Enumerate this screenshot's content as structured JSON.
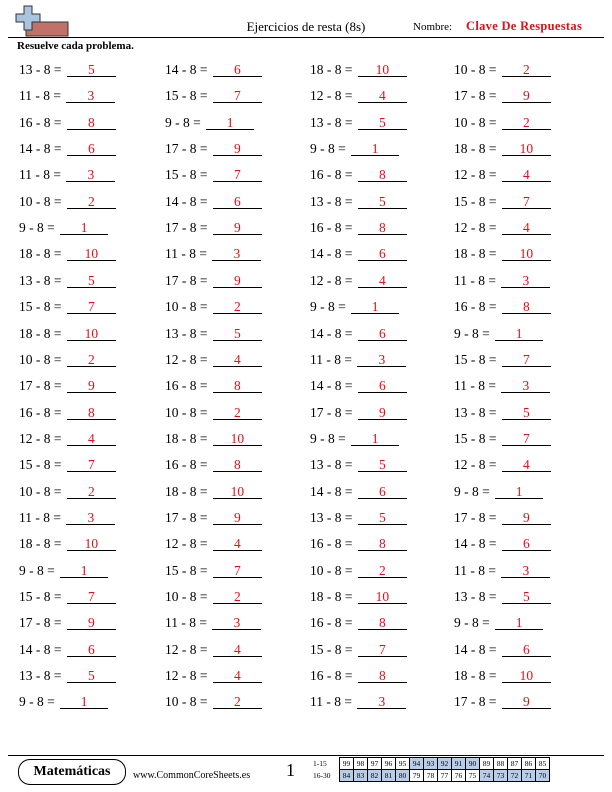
{
  "header": {
    "title": "Ejercicios de resta (8s)",
    "name_label": "Nombre:",
    "name_value": "Clave De Respuestas",
    "logo_icon": "math-plus-minus-logo-icon"
  },
  "instructions": "Resuelve cada problema.",
  "answer_color": "#e0101b",
  "columns": [
    [
      {
        "q": "13 - 8 =",
        "a": "5"
      },
      {
        "q": "11 - 8 =",
        "a": "3"
      },
      {
        "q": "16 - 8 =",
        "a": "8"
      },
      {
        "q": "14 - 8 =",
        "a": "6"
      },
      {
        "q": "11 - 8 =",
        "a": "3"
      },
      {
        "q": "10 - 8 =",
        "a": "2"
      },
      {
        "q": "9 - 8 =",
        "a": "1"
      },
      {
        "q": "18 - 8 =",
        "a": "10"
      },
      {
        "q": "13 - 8 =",
        "a": "5"
      },
      {
        "q": "15 - 8 =",
        "a": "7"
      },
      {
        "q": "18 - 8 =",
        "a": "10"
      },
      {
        "q": "10 - 8 =",
        "a": "2"
      },
      {
        "q": "17 - 8 =",
        "a": "9"
      },
      {
        "q": "16 - 8 =",
        "a": "8"
      },
      {
        "q": "12 - 8 =",
        "a": "4"
      },
      {
        "q": "15 - 8 =",
        "a": "7"
      },
      {
        "q": "10 - 8 =",
        "a": "2"
      },
      {
        "q": "11 - 8 =",
        "a": "3"
      },
      {
        "q": "18 - 8 =",
        "a": "10"
      },
      {
        "q": "9 - 8 =",
        "a": "1"
      },
      {
        "q": "15 - 8 =",
        "a": "7"
      },
      {
        "q": "17 - 8 =",
        "a": "9"
      },
      {
        "q": "14 - 8 =",
        "a": "6"
      },
      {
        "q": "13 - 8 =",
        "a": "5"
      },
      {
        "q": "9 - 8 =",
        "a": "1"
      }
    ],
    [
      {
        "q": "14 - 8 =",
        "a": "6"
      },
      {
        "q": "15 - 8 =",
        "a": "7"
      },
      {
        "q": "9 - 8 =",
        "a": "1"
      },
      {
        "q": "17 - 8 =",
        "a": "9"
      },
      {
        "q": "15 - 8 =",
        "a": "7"
      },
      {
        "q": "14 - 8 =",
        "a": "6"
      },
      {
        "q": "17 - 8 =",
        "a": "9"
      },
      {
        "q": "11 - 8 =",
        "a": "3"
      },
      {
        "q": "17 - 8 =",
        "a": "9"
      },
      {
        "q": "10 - 8 =",
        "a": "2"
      },
      {
        "q": "13 - 8 =",
        "a": "5"
      },
      {
        "q": "12 - 8 =",
        "a": "4"
      },
      {
        "q": "16 - 8 =",
        "a": "8"
      },
      {
        "q": "10 - 8 =",
        "a": "2"
      },
      {
        "q": "18 - 8 =",
        "a": "10"
      },
      {
        "q": "16 - 8 =",
        "a": "8"
      },
      {
        "q": "18 - 8 =",
        "a": "10"
      },
      {
        "q": "17 - 8 =",
        "a": "9"
      },
      {
        "q": "12 - 8 =",
        "a": "4"
      },
      {
        "q": "15 - 8 =",
        "a": "7"
      },
      {
        "q": "10 - 8 =",
        "a": "2"
      },
      {
        "q": "11 - 8 =",
        "a": "3"
      },
      {
        "q": "12 - 8 =",
        "a": "4"
      },
      {
        "q": "12 - 8 =",
        "a": "4"
      },
      {
        "q": "10 - 8 =",
        "a": "2"
      }
    ],
    [
      {
        "q": "18 - 8 =",
        "a": "10"
      },
      {
        "q": "12 - 8 =",
        "a": "4"
      },
      {
        "q": "13 - 8 =",
        "a": "5"
      },
      {
        "q": "9 - 8 =",
        "a": "1"
      },
      {
        "q": "16 - 8 =",
        "a": "8"
      },
      {
        "q": "13 - 8 =",
        "a": "5"
      },
      {
        "q": "16 - 8 =",
        "a": "8"
      },
      {
        "q": "14 - 8 =",
        "a": "6"
      },
      {
        "q": "12 - 8 =",
        "a": "4"
      },
      {
        "q": "9 - 8 =",
        "a": "1"
      },
      {
        "q": "14 - 8 =",
        "a": "6"
      },
      {
        "q": "11 - 8 =",
        "a": "3"
      },
      {
        "q": "14 - 8 =",
        "a": "6"
      },
      {
        "q": "17 - 8 =",
        "a": "9"
      },
      {
        "q": "9 - 8 =",
        "a": "1"
      },
      {
        "q": "13 - 8 =",
        "a": "5"
      },
      {
        "q": "14 - 8 =",
        "a": "6"
      },
      {
        "q": "13 - 8 =",
        "a": "5"
      },
      {
        "q": "16 - 8 =",
        "a": "8"
      },
      {
        "q": "10 - 8 =",
        "a": "2"
      },
      {
        "q": "18 - 8 =",
        "a": "10"
      },
      {
        "q": "16 - 8 =",
        "a": "8"
      },
      {
        "q": "15 - 8 =",
        "a": "7"
      },
      {
        "q": "16 - 8 =",
        "a": "8"
      },
      {
        "q": "11 - 8 =",
        "a": "3"
      }
    ],
    [
      {
        "q": "10 - 8 =",
        "a": "2"
      },
      {
        "q": "17 - 8 =",
        "a": "9"
      },
      {
        "q": "10 - 8 =",
        "a": "2"
      },
      {
        "q": "18 - 8 =",
        "a": "10"
      },
      {
        "q": "12 - 8 =",
        "a": "4"
      },
      {
        "q": "15 - 8 =",
        "a": "7"
      },
      {
        "q": "12 - 8 =",
        "a": "4"
      },
      {
        "q": "18 - 8 =",
        "a": "10"
      },
      {
        "q": "11 - 8 =",
        "a": "3"
      },
      {
        "q": "16 - 8 =",
        "a": "8"
      },
      {
        "q": "9 - 8 =",
        "a": "1"
      },
      {
        "q": "15 - 8 =",
        "a": "7"
      },
      {
        "q": "11 - 8 =",
        "a": "3"
      },
      {
        "q": "13 - 8 =",
        "a": "5"
      },
      {
        "q": "15 - 8 =",
        "a": "7"
      },
      {
        "q": "12 - 8 =",
        "a": "4"
      },
      {
        "q": "9 - 8 =",
        "a": "1"
      },
      {
        "q": "17 - 8 =",
        "a": "9"
      },
      {
        "q": "14 - 8 =",
        "a": "6"
      },
      {
        "q": "11 - 8 =",
        "a": "3"
      },
      {
        "q": "13 - 8 =",
        "a": "5"
      },
      {
        "q": "9 - 8 =",
        "a": "1"
      },
      {
        "q": "14 - 8 =",
        "a": "6"
      },
      {
        "q": "18 - 8 =",
        "a": "10"
      },
      {
        "q": "17 - 8 =",
        "a": "9"
      }
    ]
  ],
  "footer": {
    "brand": "Matemáticas",
    "site": "www.CommonCoreSheets.es",
    "page": "1",
    "score_rows": [
      {
        "label": "1-15",
        "cells": [
          "99",
          "98",
          "97",
          "96",
          "95",
          "94",
          "93",
          "92",
          "91",
          "90",
          "89",
          "88",
          "87",
          "86",
          "85"
        ]
      },
      {
        "label": "16-30",
        "cells": [
          "84",
          "83",
          "82",
          "81",
          "80",
          "79",
          "78",
          "77",
          "76",
          "75",
          "74",
          "73",
          "72",
          "71",
          "70"
        ]
      }
    ]
  }
}
